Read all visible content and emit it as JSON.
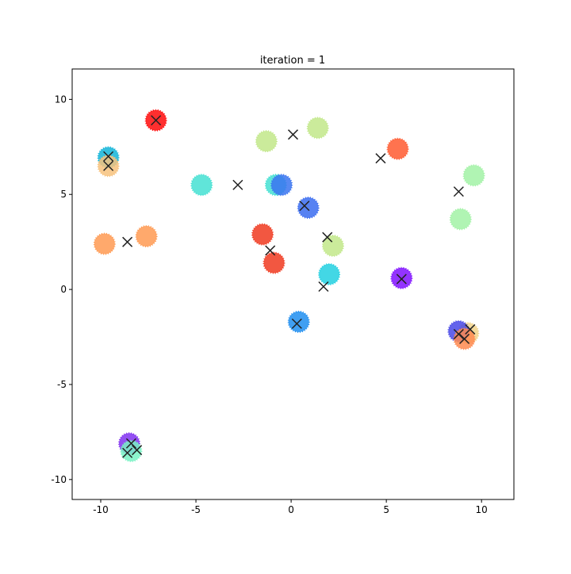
{
  "chart_data": {
    "type": "scatter",
    "title": "iteration = 1",
    "xlim": [
      -11.5,
      11.7
    ],
    "ylim": [
      -11.05,
      11.6
    ],
    "xticks": [
      -10,
      -5,
      0,
      5,
      10
    ],
    "yticks": [
      -10,
      -5,
      0,
      5,
      10
    ],
    "series": [
      {
        "marker": "cloud",
        "x": [
          -7.1,
          -9.6,
          -9.6,
          -4.7,
          -1.3,
          1.4,
          5.6,
          9.6,
          8.9,
          -0.8,
          -0.5,
          0.9,
          -9.8,
          -7.6,
          -1.5,
          -0.9,
          2.2,
          2.0,
          5.8,
          0.4,
          9.3,
          8.8,
          9.1,
          -8.5,
          -8.4
        ],
        "y": [
          8.9,
          6.95,
          6.5,
          5.5,
          7.8,
          8.5,
          7.4,
          6.0,
          3.7,
          5.5,
          5.5,
          4.3,
          2.4,
          2.8,
          2.9,
          1.4,
          2.3,
          0.8,
          0.6,
          -1.7,
          -2.3,
          -2.2,
          -2.6,
          -8.1,
          -8.5
        ],
        "colors": [
          "#ff0a0a",
          "#12b4d8",
          "#f7c27c",
          "#44e0d2",
          "#c2e88a",
          "#c2e88a",
          "#ff5a30",
          "#a2f2a6",
          "#a2f2a6",
          "#44e0d2",
          "#3a74f0",
          "#3a6cf0",
          "#ff9a52",
          "#ff9a52",
          "#f03a20",
          "#f03a20",
          "#c2e88a",
          "#22d0e0",
          "#8010ff",
          "#1e8ef0",
          "#f2d48a",
          "#4848e8",
          "#ff8a50",
          "#8030f0",
          "#78f2c4"
        ]
      },
      {
        "marker": "x",
        "color": "#222222",
        "x": [
          -9.6,
          -9.6,
          -7.1,
          -2.8,
          0.1,
          4.7,
          8.8,
          0.7,
          -8.6,
          1.9,
          -1.1,
          1.7,
          5.8,
          0.3,
          8.8,
          9.4,
          9.1,
          -8.6,
          -8.1,
          -8.4
        ],
        "y": [
          7.0,
          6.5,
          8.9,
          5.5,
          8.15,
          6.9,
          5.15,
          4.4,
          2.5,
          2.75,
          2.05,
          0.15,
          0.55,
          -1.8,
          -2.35,
          -2.1,
          -2.6,
          -8.6,
          -8.45,
          -8.1
        ]
      }
    ]
  }
}
